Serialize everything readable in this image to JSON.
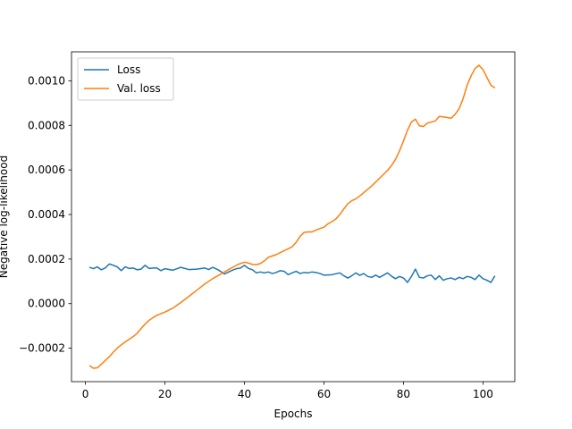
{
  "chart_data": {
    "type": "line",
    "xlabel": "Epochs",
    "ylabel": "Negative log-likelihood",
    "xlim": [
      -3.5,
      108
    ],
    "ylim": [
      -0.00035,
      0.00113
    ],
    "xticks": [
      0,
      20,
      40,
      60,
      80,
      100
    ],
    "yticks": [
      -0.0002,
      0.0,
      0.0002,
      0.0004,
      0.0006,
      0.0008,
      0.001
    ],
    "ytick_labels": [
      "−0.0002",
      "0.0000",
      "0.0002",
      "0.0004",
      "0.0006",
      "0.0008",
      "0.0010"
    ],
    "legend": {
      "placement": "upper-left"
    },
    "grid": false,
    "series": [
      {
        "name": "Loss",
        "color": "#1f77b4",
        "points": [
          [
            1,
            0.000163
          ],
          [
            2,
            0.000157
          ],
          [
            3,
            0.000165
          ],
          [
            4,
            0.000152
          ],
          [
            5,
            0.00016
          ],
          [
            6,
            0.000178
          ],
          [
            7,
            0.000172
          ],
          [
            8,
            0.000165
          ],
          [
            9,
            0.000148
          ],
          [
            10,
            0.000165
          ],
          [
            11,
            0.000158
          ],
          [
            12,
            0.00016
          ],
          [
            13,
            0.000152
          ],
          [
            14,
            0.000155
          ],
          [
            15,
            0.000172
          ],
          [
            16,
            0.000158
          ],
          [
            17,
            0.00016
          ],
          [
            18,
            0.00016
          ],
          [
            19,
            0.000148
          ],
          [
            20,
            0.000157
          ],
          [
            22,
            0.00015
          ],
          [
            24,
            0.000163
          ],
          [
            26,
            0.000153
          ],
          [
            28,
            0.000155
          ],
          [
            30,
            0.00016
          ],
          [
            31,
            0.000153
          ],
          [
            32,
            0.000163
          ],
          [
            33,
            0.000155
          ],
          [
            34,
            0.000145
          ],
          [
            35,
            0.000133
          ],
          [
            36,
            0.000142
          ],
          [
            37,
            0.00015
          ],
          [
            38,
            0.000157
          ],
          [
            39,
            0.00016
          ],
          [
            40,
            0.000172
          ],
          [
            41,
            0.000158
          ],
          [
            42,
            0.000152
          ],
          [
            43,
            0.000138
          ],
          [
            44,
            0.000142
          ],
          [
            45,
            0.000138
          ],
          [
            46,
            0.000142
          ],
          [
            47,
            0.000135
          ],
          [
            48,
            0.00014
          ],
          [
            49,
            0.000148
          ],
          [
            50,
            0.000145
          ],
          [
            51,
            0.00013
          ],
          [
            52,
            0.000138
          ],
          [
            53,
            0.000145
          ],
          [
            54,
            0.000135
          ],
          [
            55,
            0.00014
          ],
          [
            56,
            0.000138
          ],
          [
            57,
            0.000142
          ],
          [
            58,
            0.00014
          ],
          [
            59,
            0.000135
          ],
          [
            60,
            0.000128
          ],
          [
            62,
            0.00013
          ],
          [
            64,
            0.000138
          ],
          [
            65,
            0.000125
          ],
          [
            66,
            0.000115
          ],
          [
            67,
            0.000125
          ],
          [
            68,
            0.000138
          ],
          [
            69,
            0.000127
          ],
          [
            70,
            0.000135
          ],
          [
            71,
            0.000122
          ],
          [
            72,
            0.000118
          ],
          [
            73,
            0.000128
          ],
          [
            74,
            0.000118
          ],
          [
            75,
            0.000128
          ],
          [
            76,
            0.000138
          ],
          [
            77,
            0.000123
          ],
          [
            78,
            0.000112
          ],
          [
            79,
            0.000122
          ],
          [
            80,
            0.000115
          ],
          [
            81,
            9.5e-05
          ],
          [
            82,
            0.000122
          ],
          [
            83,
            0.000155
          ],
          [
            84,
            0.000118
          ],
          [
            85,
            0.000115
          ],
          [
            86,
            0.000125
          ],
          [
            87,
            0.000128
          ],
          [
            88,
            0.000108
          ],
          [
            89,
            0.000125
          ],
          [
            90,
            0.000105
          ],
          [
            91,
            0.000112
          ],
          [
            92,
            0.000115
          ],
          [
            93,
            0.000108
          ],
          [
            94,
            0.000118
          ],
          [
            95,
            0.000112
          ],
          [
            96,
            0.000122
          ],
          [
            97,
            0.000118
          ],
          [
            98,
            0.000108
          ],
          [
            99,
            0.000128
          ],
          [
            100,
            0.000112
          ],
          [
            101,
            0.000105
          ],
          [
            102,
            9.5e-05
          ],
          [
            103,
            0.000125
          ]
        ]
      },
      {
        "name": "Val. loss",
        "color": "#ff7f0e",
        "points": [
          [
            1,
            -0.000278
          ],
          [
            2,
            -0.00029
          ],
          [
            3,
            -0.000288
          ],
          [
            4,
            -0.000272
          ],
          [
            5,
            -0.000255
          ],
          [
            6,
            -0.000238
          ],
          [
            7,
            -0.000218
          ],
          [
            8,
            -0.0002
          ],
          [
            9,
            -0.000185
          ],
          [
            10,
            -0.000172
          ],
          [
            11,
            -0.00016
          ],
          [
            12,
            -0.000148
          ],
          [
            13,
            -0.000133
          ],
          [
            14,
            -0.000112
          ],
          [
            15,
            -9.2e-05
          ],
          [
            16,
            -7.5e-05
          ],
          [
            17,
            -6.3e-05
          ],
          [
            18,
            -5.2e-05
          ],
          [
            19,
            -4.5e-05
          ],
          [
            20,
            -3.8e-05
          ],
          [
            22,
            -2e-05
          ],
          [
            24,
            5e-06
          ],
          [
            26,
            3.2e-05
          ],
          [
            28,
            6e-05
          ],
          [
            30,
            8.8e-05
          ],
          [
            32,
            0.000112
          ],
          [
            34,
            0.000132
          ],
          [
            36,
            0.000153
          ],
          [
            38,
            0.000172
          ],
          [
            39,
            0.00018
          ],
          [
            40,
            0.000186
          ],
          [
            41,
            0.000182
          ],
          [
            42,
            0.000176
          ],
          [
            43,
            0.000175
          ],
          [
            44,
            0.00018
          ],
          [
            45,
            0.000192
          ],
          [
            46,
            0.000208
          ],
          [
            47,
            0.000214
          ],
          [
            48,
            0.00022
          ],
          [
            50,
            0.000238
          ],
          [
            52,
            0.000255
          ],
          [
            53,
            0.000275
          ],
          [
            54,
            0.000302
          ],
          [
            55,
            0.00032
          ],
          [
            56,
            0.000322
          ],
          [
            57,
            0.000322
          ],
          [
            58,
            0.00033
          ],
          [
            59,
            0.000337
          ],
          [
            60,
            0.000343
          ],
          [
            61,
            0.000358
          ],
          [
            62,
            0.000368
          ],
          [
            63,
            0.00038
          ],
          [
            64,
            0.0004
          ],
          [
            65,
            0.000425
          ],
          [
            66,
            0.000448
          ],
          [
            67,
            0.000462
          ],
          [
            68,
            0.00047
          ],
          [
            69,
            0.000483
          ],
          [
            70,
            0.000498
          ],
          [
            72,
            0.000528
          ],
          [
            74,
            0.000563
          ],
          [
            76,
            0.000598
          ],
          [
            77,
            0.00062
          ],
          [
            78,
            0.000648
          ],
          [
            79,
            0.000685
          ],
          [
            80,
            0.00073
          ],
          [
            81,
            0.000778
          ],
          [
            82,
            0.000815
          ],
          [
            83,
            0.000828
          ],
          [
            84,
            0.000798
          ],
          [
            85,
            0.000795
          ],
          [
            86,
            0.00081
          ],
          [
            87,
            0.000815
          ],
          [
            88,
            0.00082
          ],
          [
            89,
            0.00084
          ],
          [
            90,
            0.000838
          ],
          [
            91,
            0.000835
          ],
          [
            92,
            0.000832
          ],
          [
            93,
            0.00085
          ],
          [
            94,
            0.000875
          ],
          [
            95,
            0.00092
          ],
          [
            96,
            0.00098
          ],
          [
            97,
            0.001022
          ],
          [
            98,
            0.001055
          ],
          [
            99,
            0.00107
          ],
          [
            100,
            0.00105
          ],
          [
            101,
            0.001015
          ],
          [
            102,
            0.00098
          ],
          [
            103,
            0.000968
          ]
        ]
      }
    ]
  }
}
